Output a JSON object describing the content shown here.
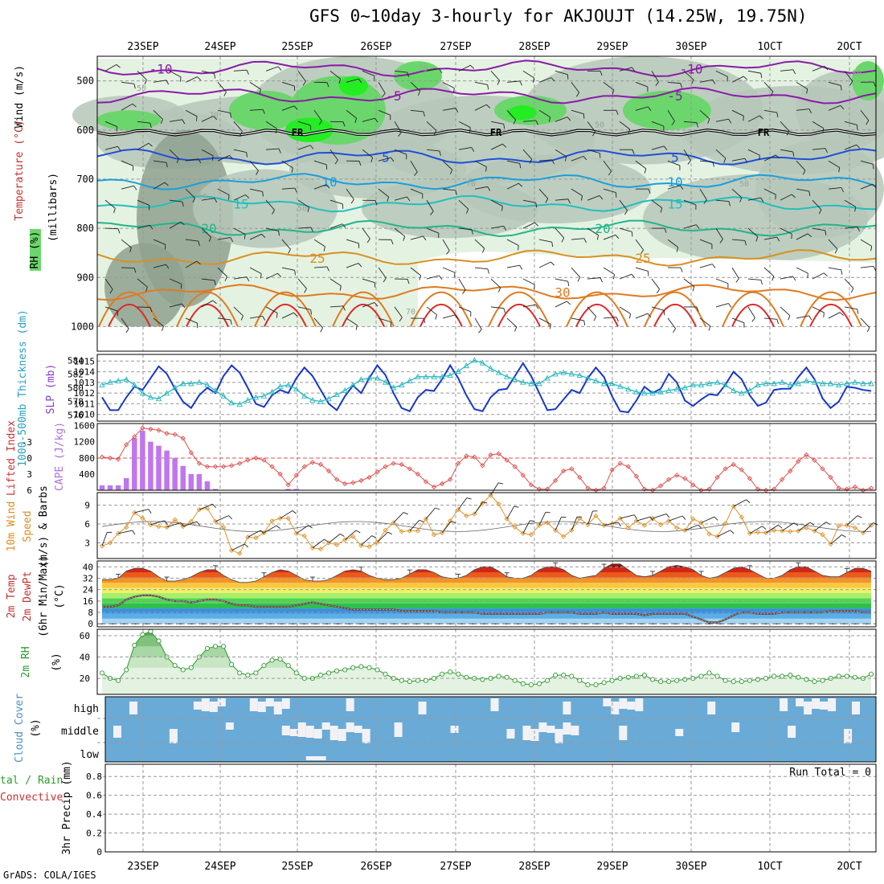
{
  "title": "GFS 0~10day 3-hourly for AKJOUJT (14.25W, 19.75N)",
  "credit": "GrADS: COLA/IGES",
  "colors": {
    "rh_light": "#e4f2e2",
    "rh_mid": "#b6c7b8",
    "rh_dark": "#8fa18f",
    "rh_green": "#6bd66b",
    "rh_bright": "#22ee22",
    "t_purple": "#8a1ba8",
    "t_blue": "#1f4fd8",
    "t_lightblue": "#1a9fdc",
    "t_teal": "#22bfbf",
    "t_green": "#22b58a",
    "t_orange": "#d99020",
    "t_darkorange": "#e07a20",
    "t_red": "#e02828",
    "slp_line": "#1838c8",
    "thick_line": "#28b8c0",
    "cape_bar": "#c077ee",
    "li_line": "#e05050",
    "wind_line": "#e0922a",
    "cloud_blue": "#6aaad6",
    "cloud_white": "#f2f2f6",
    "rh2m_line": "#2a9a2a",
    "grid": "#999999"
  },
  "chart_data": [
    {
      "panel": "upper_air",
      "type": "heatmap",
      "ylabel_lines": [
        "Wind (m/s)",
        "Temperature (°C)",
        "RH (%)",
        "(millibars)"
      ],
      "y_axis_label": "(millibars)",
      "yticks": [
        500,
        600,
        700,
        800,
        900,
        1000
      ],
      "ylim": [
        1050,
        450
      ],
      "x_top_labels": [
        "23SEP",
        "24SEP",
        "25SEP",
        "26SEP",
        "27SEP",
        "28SEP",
        "29SEP",
        "30SEP",
        "1OCT",
        "2OCT"
      ],
      "freezing_label": "FR",
      "freezing_level_mb": 605,
      "isotherms": [
        {
          "label": "-10",
          "level_mb": 475
        },
        {
          "label": "-5",
          "level_mb": 530
        },
        {
          "label": "5",
          "level_mb": 655
        },
        {
          "label": "10",
          "level_mb": 705
        },
        {
          "label": "15",
          "level_mb": 750
        },
        {
          "label": "20",
          "level_mb": 800
        },
        {
          "label": "25",
          "level_mb": 860
        },
        {
          "label": "30",
          "level_mb": 930
        }
      ],
      "rh_contour_labels": [
        "50",
        "70",
        "90"
      ]
    },
    {
      "panel": "slp_thickness",
      "type": "line",
      "ylabel_left": "1000-500mb Thickness (dm)",
      "ylabel_right": "SLP (mb)",
      "left_ticks": [
        576,
        578,
        580,
        582,
        584
      ],
      "right_ticks": [
        1010,
        1011,
        1012,
        1013,
        1014,
        1015
      ],
      "series": [
        {
          "name": "SLP (mb)",
          "values": [
            1011.6,
            1010.4,
            1010.4,
            1011.6,
            1012.6,
            1012.3,
            1013.4,
            1014.5,
            1013.8,
            1012.4,
            1011.2,
            1010.6,
            1011.8,
            1012.5,
            1012.0,
            1013.6,
            1014.6,
            1013.9,
            1012.5,
            1011.0,
            1010.7,
            1011.8,
            1012.3,
            1012.0,
            1013.4,
            1014.4,
            1013.6,
            1012.3,
            1011.0,
            1010.4,
            1011.7,
            1012.7,
            1012.0,
            1013.4,
            1014.6,
            1013.7,
            1012.0,
            1010.6,
            1010.3,
            1011.6,
            1012.3,
            1012.2,
            1013.3,
            1014.6,
            1013.4,
            1011.8,
            1010.5,
            1010.3,
            1011.6,
            1012.3,
            1012.4,
            1013.6,
            1014.8,
            1013.6,
            1012.0,
            1010.4,
            1010.5,
            1011.4,
            1012.3,
            1012.0,
            1013.4,
            1014.4,
            1013.5,
            1011.7,
            1010.3,
            1010.2,
            1011.3,
            1012.6,
            1012.0,
            1012.4,
            1013.8,
            1013.0,
            1011.3,
            1010.8,
            1011.4,
            1011.9,
            1011.8,
            1012.8,
            1014.0,
            1013.3,
            1011.8,
            1010.8,
            1011.1,
            1012.3,
            1012.4,
            1012.4,
            1013.5,
            1014.4,
            1013.3,
            1011.5,
            1010.6,
            1011.2,
            1012.6,
            1012.5,
            1012.3,
            1012.2
          ]
        },
        {
          "name": "1000-500mb Thickness (dm)",
          "values": [
            580.4,
            580.8,
            581.0,
            581.2,
            580.4,
            579.2,
            578.6,
            578.4,
            579.2,
            580.0,
            580.6,
            580.6,
            580.8,
            580.4,
            579.6,
            578.8,
            577.8,
            577.6,
            578.2,
            578.6,
            578.8,
            579.4,
            580.2,
            580.4,
            579.8,
            578.8,
            578.2,
            578.0,
            578.4,
            579.0,
            579.6,
            580.4,
            581.2,
            581.4,
            581.4,
            580.8,
            580.0,
            580.4,
            581.0,
            581.6,
            581.6,
            581.6,
            581.6,
            581.8,
            582.4,
            583.2,
            584.0,
            583.6,
            582.8,
            582.2,
            581.6,
            581.2,
            580.8,
            580.6,
            580.6,
            581.4,
            582.0,
            582.2,
            582.0,
            581.8,
            581.4,
            581.0,
            580.6,
            580.6,
            580.2,
            579.8,
            579.4,
            579.2,
            579.2,
            579.4,
            579.6,
            579.8,
            580.0,
            580.4,
            580.4,
            580.6,
            580.8,
            580.4,
            579.6,
            579.2,
            579.6,
            580.4,
            580.6,
            580.6,
            580.8,
            580.4,
            580.6,
            581.0,
            580.8,
            580.6,
            580.6,
            580.4,
            580.6,
            580.8,
            580.6,
            580.6
          ]
        }
      ]
    },
    {
      "panel": "cape_li",
      "type": "bar",
      "ylabel_left": "Lifted Index",
      "ylabel_right": "CAPE (J/kg)",
      "li_ticks": [
        -3,
        0,
        3,
        6
      ],
      "cape_ticks": [
        400,
        800,
        1200,
        1600
      ],
      "series": [
        {
          "name": "CAPE (J/kg)",
          "values": [
            120,
            120,
            120,
            300,
            1290,
            1470,
            1200,
            1100,
            980,
            800,
            600,
            400,
            400,
            220,
            30,
            0,
            0,
            0,
            0,
            0,
            0,
            0,
            0,
            30,
            30,
            0,
            0,
            0,
            0,
            0,
            0,
            0,
            0,
            0,
            0,
            0,
            0,
            0,
            0,
            0,
            0,
            0,
            0,
            0,
            0,
            0,
            0,
            0,
            0,
            0,
            0,
            0,
            0,
            0,
            0,
            0,
            0,
            0,
            0,
            0,
            0,
            0,
            0,
            0,
            0,
            0,
            0,
            0,
            0,
            0,
            0,
            0,
            0,
            0,
            0,
            0,
            0,
            0,
            0,
            0,
            0,
            0,
            0,
            0,
            0,
            0,
            0,
            0,
            0,
            0,
            0,
            0,
            0,
            0,
            0,
            0
          ]
        },
        {
          "name": "Lifted Index",
          "values": [
            -0.2,
            0.0,
            0.2,
            -2.5,
            -4.0,
            -5.6,
            -5.4,
            -5.2,
            -4.6,
            -4.4,
            -3.7,
            -1.0,
            1.0,
            1.6,
            1.6,
            1.6,
            1.4,
            1.0,
            0.4,
            0.0,
            0.4,
            1.6,
            3.0,
            5.0,
            3.2,
            1.6,
            0.8,
            1.2,
            2.4,
            4.0,
            4.8,
            4.6,
            4.2,
            3.6,
            2.6,
            1.6,
            1.0,
            1.2,
            2.0,
            3.0,
            4.4,
            5.4,
            4.8,
            4.0,
            1.0,
            -0.4,
            -0.2,
            1.4,
            -0.6,
            -0.8,
            0.4,
            1.6,
            3.2,
            5.0,
            5.8,
            5.8,
            4.2,
            2.4,
            2.0,
            3.6,
            5.6,
            6.0,
            5.6,
            2.2,
            1.0,
            1.6,
            3.4,
            5.8,
            6.0,
            5.2,
            4.0,
            3.2,
            3.8,
            5.0,
            6.0,
            5.8,
            3.6,
            2.0,
            1.2,
            2.2,
            3.8,
            5.8,
            6.0,
            5.8,
            4.0,
            2.4,
            0.6,
            -0.6,
            0.4,
            2.0,
            3.6,
            5.6,
            5.8,
            5.4,
            6.0,
            5.6
          ]
        }
      ]
    },
    {
      "panel": "wind10m",
      "type": "line",
      "ylabel": "10m Wind Speed (m/s) & Barbs",
      "ylabel_lines": [
        "10m Wind",
        "Speed",
        "(m/s) & Barbs"
      ],
      "yticks": [
        3,
        6,
        9
      ],
      "series": [
        {
          "name": "Speed",
          "values": [
            2.5,
            3.0,
            4.5,
            5.5,
            7.8,
            6.9,
            5.9,
            5.6,
            5.5,
            6.7,
            5.6,
            6.4,
            8.3,
            8.5,
            6.4,
            5.5,
            1.8,
            1.3,
            3.9,
            3.8,
            4.6,
            6.5,
            6.9,
            6.9,
            4.5,
            4.1,
            2.2,
            2.0,
            3.0,
            2.7,
            3.5,
            4.0,
            2.6,
            2.4,
            3.1,
            5.0,
            6.2,
            4.8,
            4.9,
            4.9,
            6.8,
            4.3,
            4.6,
            6.5,
            8.3,
            7.3,
            7.6,
            9.3,
            10.6,
            9.2,
            6.8,
            5.5,
            4.5,
            4.3,
            5.8,
            6.2,
            5.0,
            4.0,
            5.0,
            6.9,
            5.9,
            7.3,
            5.8,
            6.0,
            6.9,
            5.4,
            6.5,
            5.8,
            6.9,
            5.9,
            6.5,
            5.4,
            5.0,
            6.8,
            6.2,
            4.4,
            4.0,
            6.1,
            8.8,
            7.1,
            4.5,
            4.7,
            4.6,
            5.0,
            4.9,
            4.8,
            4.9,
            5.4,
            4.9,
            4.3,
            2.8,
            5.7,
            5.8,
            5.4,
            4.6,
            5.8
          ]
        }
      ]
    },
    {
      "panel": "temp2m",
      "type": "area",
      "ylabel_lines": [
        "2m Temp",
        "2m DewPt",
        "(6hr Min/Max)",
        "(°C)"
      ],
      "yticks": [
        0,
        8,
        16,
        24,
        32,
        40
      ],
      "series": [
        {
          "name": "2m Temp",
          "values": [
            31,
            31,
            32,
            37,
            39,
            39,
            37,
            33,
            30,
            30,
            31,
            33,
            36,
            38,
            38,
            34,
            31,
            29,
            29,
            30,
            33,
            36,
            38,
            37,
            34,
            31,
            30,
            30,
            31,
            34,
            37,
            38,
            37,
            34,
            32,
            31,
            31,
            32,
            35,
            38,
            38,
            36,
            33,
            32,
            32,
            34,
            38,
            40,
            40,
            37,
            33,
            32,
            32,
            34,
            38,
            40,
            40,
            38,
            34,
            32,
            33,
            34,
            39,
            42,
            42,
            38,
            34,
            33,
            34,
            37,
            40,
            41,
            40,
            38,
            34,
            32,
            33,
            36,
            39,
            40,
            38,
            35,
            32,
            32,
            34,
            38,
            40,
            40,
            37,
            34,
            33,
            33,
            36,
            39,
            39,
            37
          ]
        },
        {
          "name": "2m DewPt",
          "values": [
            12,
            12,
            13,
            17,
            19,
            20,
            20,
            19,
            17,
            16,
            16,
            15,
            16,
            17,
            17,
            16,
            14,
            13,
            13,
            12,
            12,
            12,
            12,
            12,
            13,
            14,
            15,
            14,
            13,
            12,
            11,
            10,
            10,
            10,
            10,
            10,
            10,
            9,
            9,
            9,
            9,
            9,
            8,
            8,
            8,
            8,
            8,
            7,
            7,
            7,
            7,
            7,
            7,
            7,
            7,
            8,
            8,
            8,
            8,
            7,
            7,
            7,
            8,
            7,
            7,
            7,
            7,
            6,
            7,
            7,
            7,
            7,
            7,
            5,
            3,
            1,
            1,
            3,
            6,
            8,
            8,
            7,
            7,
            7,
            8,
            8,
            8,
            8,
            8,
            8,
            9,
            9,
            9,
            9,
            8,
            8
          ]
        }
      ]
    },
    {
      "panel": "rh2m",
      "type": "area",
      "ylabel": "2m RH",
      "unit": "(%)",
      "yticks": [
        20,
        40,
        60
      ],
      "series": [
        {
          "name": "2m RH",
          "values": [
            25,
            20,
            18,
            28,
            51,
            61,
            64,
            55,
            40,
            32,
            28,
            30,
            40,
            48,
            50,
            50,
            33,
            25,
            23,
            25,
            32,
            37,
            38,
            32,
            25,
            20,
            20,
            23,
            25,
            27,
            28,
            30,
            31,
            30,
            28,
            24,
            20,
            18,
            17,
            18,
            18,
            20,
            24,
            26,
            24,
            21,
            20,
            19,
            20,
            22,
            21,
            18,
            15,
            14,
            15,
            18,
            23,
            23,
            22,
            18,
            14,
            14,
            16,
            18,
            20,
            21,
            22,
            23,
            19,
            17,
            17,
            18,
            19,
            20,
            22,
            25,
            22,
            18,
            17,
            17,
            18,
            19,
            20,
            22,
            22,
            23,
            21,
            19,
            17,
            18,
            20,
            22,
            22,
            21,
            20,
            24
          ]
        }
      ]
    },
    {
      "panel": "cloud",
      "type": "heatmap",
      "ylabel": "Cloud Cover (%)",
      "ylabel_lines": [
        "Cloud Cover",
        "(%)"
      ],
      "layers": [
        "high",
        "middle",
        "low"
      ]
    },
    {
      "panel": "precip",
      "type": "bar",
      "ylabel": "3hr Precip (mm)",
      "left_edge_lines": [
        "tal / Rain",
        "Convective"
      ],
      "yticks": [
        0,
        0.2,
        0.4,
        0.6,
        0.8
      ],
      "run_total": "Run Total = 0",
      "x_bottom_labels": [
        "23SEP",
        "24SEP",
        "25SEP",
        "26SEP",
        "27SEP",
        "28SEP",
        "29SEP",
        "30SEP",
        "1OCT",
        "2OCT"
      ]
    }
  ]
}
